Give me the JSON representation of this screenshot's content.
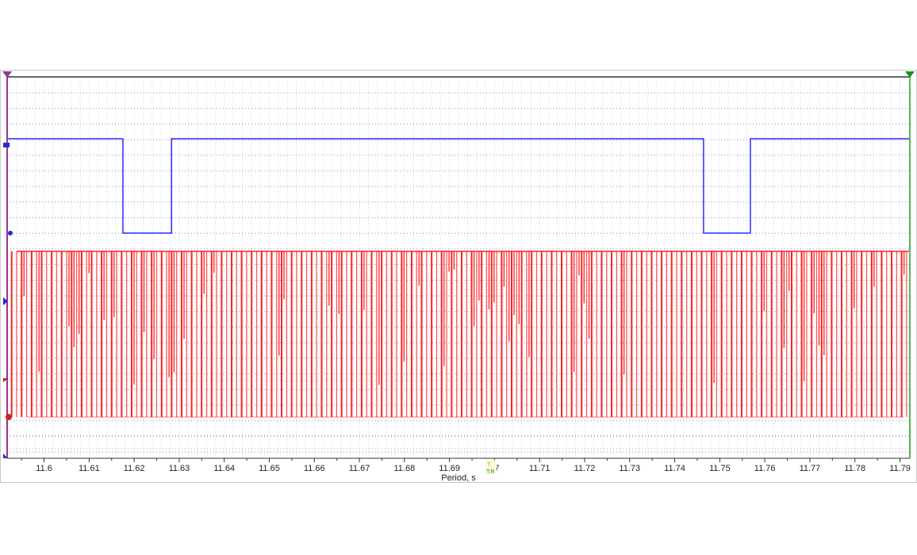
{
  "chart_data": {
    "type": "line",
    "xlabel": "Period, s",
    "xlim": [
      11.5918,
      11.7922
    ],
    "x_ticks": [
      "11.6",
      "11.61",
      "11.62",
      "11.63",
      "11.64",
      "11.65",
      "11.66",
      "11.67",
      "11.68",
      "11.69",
      "11.7",
      "11.71",
      "11.72",
      "11.73",
      "11.74",
      "11.75",
      "11.76",
      "11.77",
      "11.78",
      "11.79"
    ],
    "grid": true,
    "legend": "none",
    "series": [
      {
        "color": "#2b2bff",
        "kind": "square",
        "high_level": 1,
        "low_level": 0,
        "low_intervals": [
          [
            11.6175,
            11.6283
          ],
          [
            11.7464,
            11.7568
          ]
        ]
      },
      {
        "color": "#ff2020",
        "kind": "pulse-train",
        "high_level": 1,
        "low_level": 0,
        "pulse_period": 0.00111,
        "first_pulse": 11.5928
      }
    ],
    "cursors": [
      {
        "color": "#993399",
        "position": "left"
      },
      {
        "color": "#22aa22",
        "position": "right"
      }
    ],
    "trigger_marker": {
      "labels": [
        "T",
        "T:R"
      ],
      "at": 11.7
    }
  }
}
